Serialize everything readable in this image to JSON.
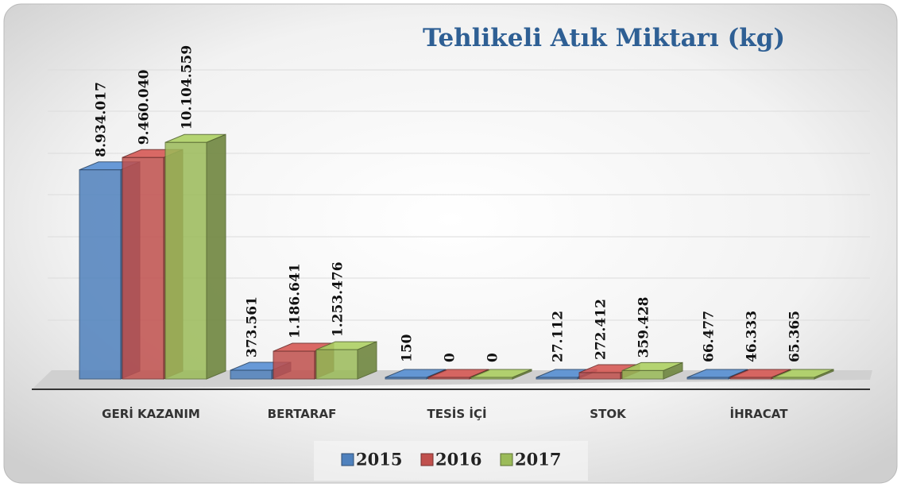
{
  "chart_data": {
    "type": "bar3d",
    "title": "Tehlikeli Atık Miktarı (kg)",
    "categories": [
      "GERİ KAZANIM",
      "BERTARAF",
      "TESİS İÇİ",
      "STOK",
      "İHRACAT"
    ],
    "series": [
      {
        "name": "2015",
        "color": "#4f81bd",
        "values": [
          8934017,
          373561,
          150,
          27112,
          66477
        ],
        "value_labels": [
          "8.934.017",
          "373.561",
          "150",
          "27.112",
          "66.477"
        ]
      },
      {
        "name": "2016",
        "color": "#c0504d",
        "values": [
          9460040,
          1186641,
          0,
          272412,
          46333
        ],
        "value_labels": [
          "9.460.040",
          "1.186.641",
          "0",
          "272.412",
          "46.333"
        ]
      },
      {
        "name": "2017",
        "color": "#9bbb59",
        "values": [
          10104559,
          1253476,
          0,
          359428,
          65365
        ],
        "value_labels": [
          "10.104.559",
          "1.253.476",
          "0",
          "359.428",
          "65.365"
        ]
      }
    ],
    "ylim": [
      0,
      15000000
    ]
  }
}
